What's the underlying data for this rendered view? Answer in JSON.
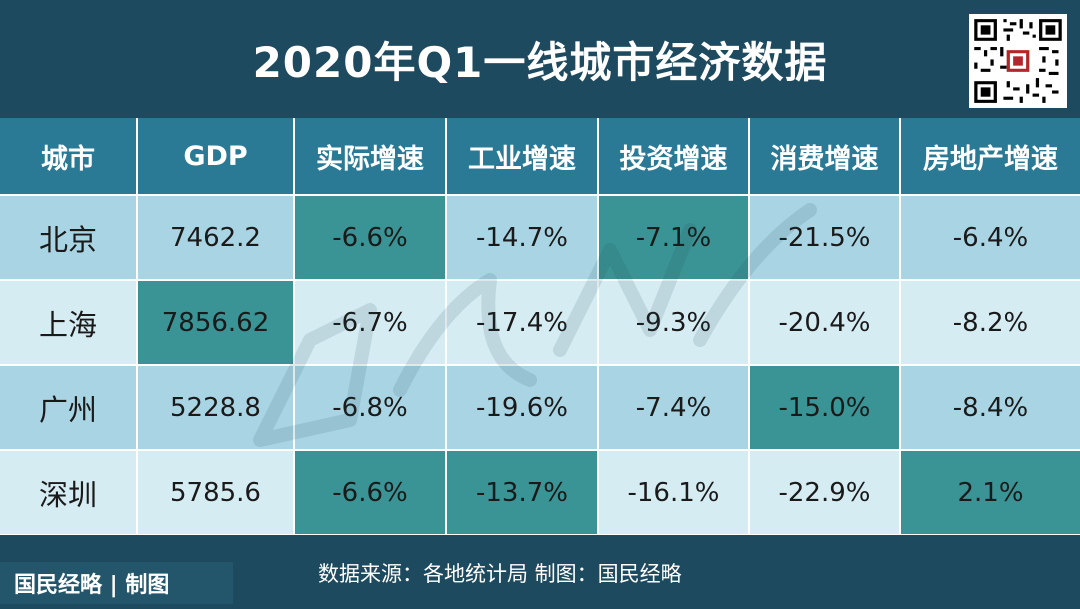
{
  "title": "2020年Q1一线城市经济数据",
  "brand": "国民经略 | 制图",
  "source": "数据来源：各地统计局 制图：国民经略",
  "qr": {
    "icon": "qr-code-icon"
  },
  "colors": {
    "header_bg": "#2a7a96",
    "row_a": "#a9d4e3",
    "row_b": "#d6ecf3",
    "highlight": "#3a9394",
    "frame": "#1d4a5e"
  },
  "chart_data": {
    "type": "table",
    "title": "2020年Q1一线城市经济数据",
    "columns": [
      "城市",
      "GDP",
      "实际增速",
      "工业增速",
      "投资增速",
      "消费增速",
      "房地产增速"
    ],
    "rows": [
      {
        "city": "北京",
        "gdp": "7462.2",
        "real": "-6.6%",
        "industry": "-14.7%",
        "investment": "-7.1%",
        "consumption": "-21.5%",
        "realestate": "-6.4%"
      },
      {
        "city": "上海",
        "gdp": "7856.62",
        "real": "-6.7%",
        "industry": "-17.4%",
        "investment": "-9.3%",
        "consumption": "-20.4%",
        "realestate": "-8.2%"
      },
      {
        "city": "广州",
        "gdp": "5228.8",
        "real": "-6.8%",
        "industry": "-19.6%",
        "investment": "-7.4%",
        "consumption": "-15.0%",
        "realestate": "-8.4%"
      },
      {
        "city": "深圳",
        "gdp": "5785.6",
        "real": "-6.6%",
        "industry": "-13.7%",
        "investment": "-16.1%",
        "consumption": "-22.9%",
        "realestate": "2.1%"
      }
    ]
  }
}
